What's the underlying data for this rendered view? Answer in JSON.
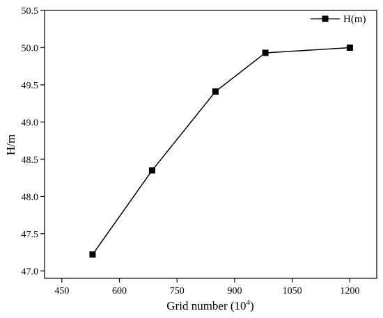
{
  "chart_data": {
    "type": "line",
    "title": "",
    "xlabel": "Grid number (10",
    "xlabel_sup": "4",
    "xlabel_close": ")",
    "ylabel": "H/m",
    "xlim": [
      405,
      1270
    ],
    "ylim": [
      46.9,
      50.5
    ],
    "xticks": [
      450,
      600,
      750,
      900,
      1050,
      1200
    ],
    "yticks": [
      47.0,
      47.5,
      48.0,
      48.5,
      49.0,
      49.5,
      50.0,
      50.5
    ],
    "ytick_labels": [
      "47.0",
      "47.5",
      "48.0",
      "48.5",
      "49.0",
      "49.5",
      "50.0",
      "50.5"
    ],
    "grid": false,
    "legend_position": "top-right",
    "series": [
      {
        "name": "H(m)",
        "marker": "square",
        "color": "#000000",
        "x": [
          530,
          685,
          850,
          980,
          1200
        ],
        "y": [
          47.22,
          48.35,
          49.41,
          49.93,
          50.0
        ]
      }
    ]
  }
}
